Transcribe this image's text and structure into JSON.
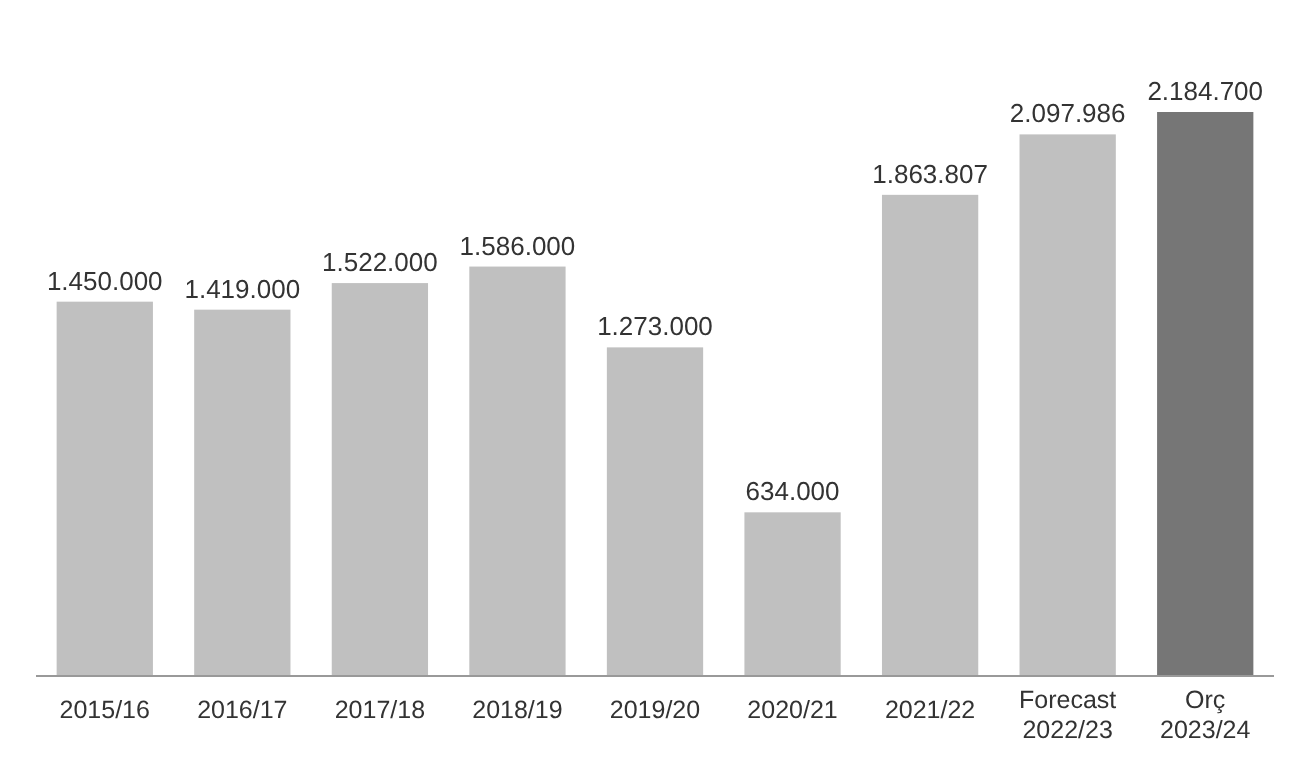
{
  "chart_data": {
    "type": "bar",
    "categories": [
      "2015/16",
      "2016/17",
      "2017/18",
      "2018/19",
      "2019/20",
      "2020/21",
      "2021/22",
      "Forecast\n2022/23",
      "Orç\n2023/24"
    ],
    "values": [
      1450000,
      1419000,
      1522000,
      1586000,
      1273000,
      634000,
      1863807,
      2097986,
      2184700
    ],
    "colors": [
      "#c0c0c0",
      "#c0c0c0",
      "#c0c0c0",
      "#c0c0c0",
      "#c0c0c0",
      "#c0c0c0",
      "#c0c0c0",
      "#c0c0c0",
      "#767676"
    ],
    "value_labels": [
      "1.450.000",
      "1.419.000",
      "1.522.000",
      "1.586.000",
      "1.273.000",
      "634.000",
      "1.863.807",
      "2.097.986",
      "2.184.700"
    ]
  }
}
